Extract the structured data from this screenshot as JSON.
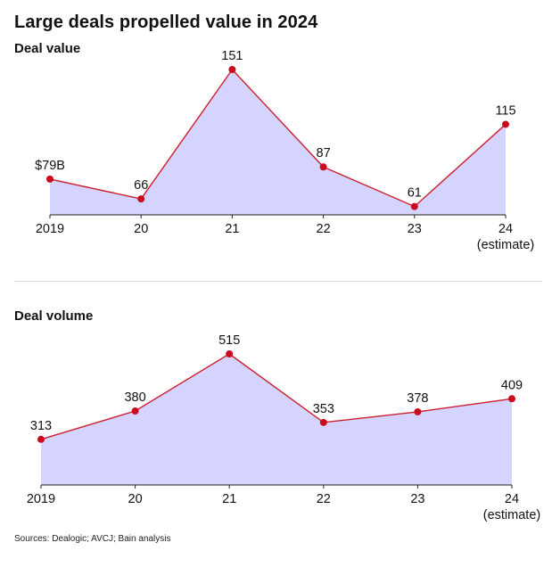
{
  "title": "Large deals propelled value in 2024",
  "source": "Sources: Dealogic; AVCJ; Bain analysis",
  "colors": {
    "area_fill": "#d4d4ff",
    "line": "#cc1f2e",
    "point": "#cc0a1e",
    "divider": "#d8d8d8"
  },
  "chart_data": [
    {
      "type": "area",
      "title": "Deal value",
      "categories": [
        "2019",
        "20",
        "21",
        "22",
        "23",
        "24"
      ],
      "category_sublabels": [
        "",
        "",
        "",
        "",
        "",
        "(estimate)"
      ],
      "values": [
        79,
        66,
        151,
        87,
        61,
        115
      ],
      "data_labels": [
        "$79B",
        "66",
        "151",
        "87",
        "61",
        "115"
      ],
      "ylim": [
        0,
        151
      ],
      "grid": false,
      "markers": true
    },
    {
      "type": "area",
      "title": "Deal volume",
      "categories": [
        "2019",
        "20",
        "21",
        "22",
        "23",
        "24"
      ],
      "category_sublabels": [
        "",
        "",
        "",
        "",
        "",
        "(estimate)"
      ],
      "values": [
        313,
        380,
        515,
        353,
        378,
        409
      ],
      "data_labels": [
        "313",
        "380",
        "515",
        "353",
        "378",
        "409"
      ],
      "ylim": [
        0,
        515
      ],
      "grid": false,
      "markers": true
    }
  ]
}
